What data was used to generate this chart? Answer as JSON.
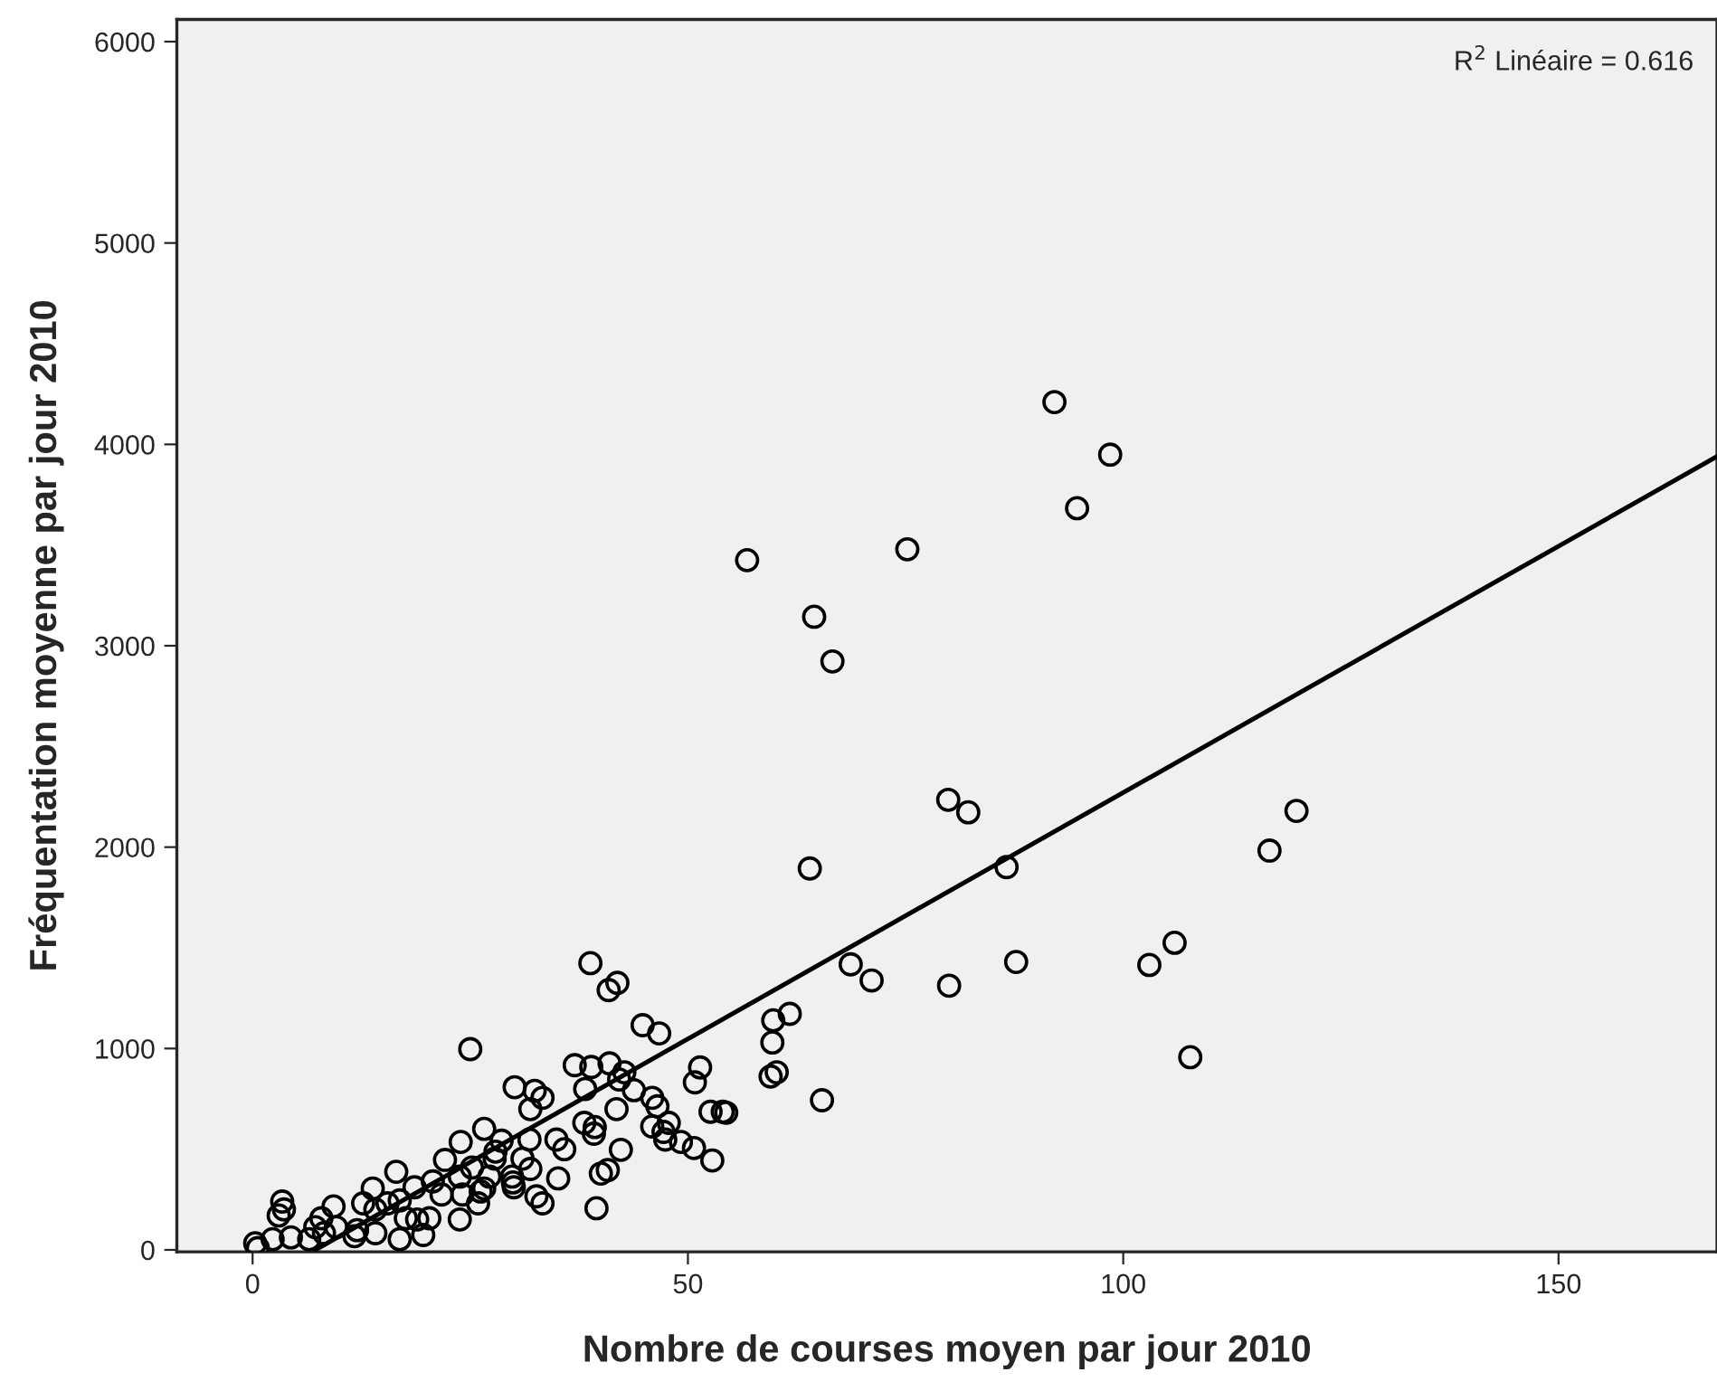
{
  "chart_data": {
    "type": "scatter",
    "xlabel": "Nombre de courses moyen par jour 2010",
    "ylabel": "Fréquentation moyenne par jour 2010",
    "annotations": [
      "R$^{2}$ Linéaire = 0.616"
    ],
    "xlim": [
      -8.7,
      168.2
    ],
    "ylim": [
      -10,
      6110
    ],
    "xticks": [
      0,
      50,
      100,
      150
    ],
    "yticks": [
      0,
      1000,
      2000,
      3000,
      4000,
      5000,
      6000
    ],
    "grid": false,
    "marker": "circle",
    "series": [
      {
        "color": "#000000",
        "x": [
          92.1,
          98.5,
          94.7,
          56.8,
          75.2,
          64.5,
          66.6,
          79.9,
          82.2,
          116.8,
          119.9,
          64.0,
          86.6,
          68.7,
          71.1,
          80.0,
          87.7,
          103.0,
          105.9,
          107.7,
          59.8,
          61.7,
          59.7,
          59.5,
          60.2,
          65.4,
          54.4,
          38.8,
          40.9,
          41.9,
          44.8,
          46.7,
          37.0,
          38.9,
          41.0,
          42.7,
          42.1,
          30.1,
          32.4,
          33.3,
          31.9,
          38.2,
          43.8,
          45.9,
          46.5,
          51.4,
          50.8,
          41.8,
          52.6,
          54.0,
          45.9,
          47.8,
          47.2,
          47.4,
          49.2,
          50.7,
          52.8,
          38.1,
          39.3,
          39.2,
          42.3,
          34.9,
          35.8,
          31.8,
          31.0,
          31.9,
          35.1,
          40.0,
          40.8,
          39.5,
          32.6,
          33.3,
          29.8,
          29.9,
          25.0,
          26.6,
          23.9,
          28.6,
          22.1,
          25.2,
          27.9,
          27.8,
          16.5,
          13.8,
          18.6,
          20.7,
          23.8,
          21.7,
          24.1,
          26.6,
          30.0,
          15.5,
          14.1,
          16.9,
          9.3,
          12.7,
          17.6,
          18.9,
          20.3,
          23.8,
          25.9,
          26.2,
          3.4,
          3.6,
          3.0,
          7.2,
          9.6,
          11.7,
          14.1,
          8.2,
          6.5,
          16.9,
          19.6,
          4.4,
          2.3,
          0.3,
          0.6,
          12.0,
          7.9,
          27.2
        ],
        "values": [
          4210,
          3949,
          3683,
          3425,
          3479,
          3144,
          2922,
          2235,
          2173,
          1983,
          2180,
          1894,
          1901,
          1418,
          1338,
          1312,
          1430,
          1415,
          1525,
          957,
          1140,
          1172,
          1030,
          861,
          882,
          743,
          681,
          1424,
          1290,
          1326,
          1116,
          1075,
          917,
          908,
          926,
          882,
          846,
          808,
          790,
          755,
          699,
          799,
          793,
          755,
          713,
          906,
          832,
          699,
          686,
          686,
          613,
          631,
          586,
          548,
          536,
          506,
          444,
          631,
          610,
          577,
          497,
          548,
          500,
          548,
          453,
          402,
          355,
          379,
          396,
          207,
          266,
          231,
          364,
          335,
          997,
          601,
          536,
          542,
          447,
          409,
          488,
          453,
          388,
          305,
          311,
          340,
          364,
          275,
          275,
          305,
          311,
          231,
          201,
          246,
          216,
          231,
          157,
          151,
          157,
          151,
          231,
          290,
          240,
          201,
          171,
          113,
          113,
          68,
          83,
          83,
          53,
          53,
          74,
          62,
          53,
          33,
          9,
          98,
          157,
          364
        ]
      },
      {
        "type": "line",
        "color": "#000000",
        "marker": "none",
        "x": [
          7.2,
          168.2
        ],
        "values": [
          0,
          3940
        ]
      }
    ]
  }
}
